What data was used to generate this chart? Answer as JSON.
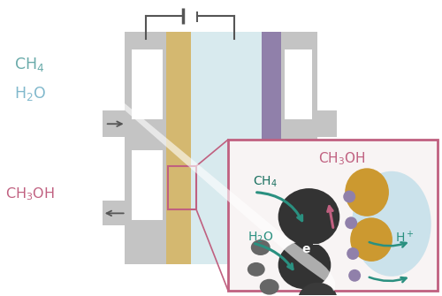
{
  "bg_color": "#ffffff",
  "cell_color": "#c4c4c4",
  "membrane_color": "#d8eaee",
  "anode_color": "#d4b870",
  "cathode_color": "#9080aa",
  "ch4_color": "#6aabaa",
  "h2o_color": "#80b8cc",
  "ch3oh_color": "#c06080",
  "arrow_color_teal": "#2a9080",
  "arrow_color_pink": "#c06080",
  "inset_border_color": "#c06080",
  "inset_bg": "#f8f4f4",
  "gold_color": "#cc9930",
  "purple_color": "#9080aa",
  "light_blue_blob": "#bcdce8",
  "dark_cat": "#333333",
  "mid_cat": "#666666",
  "wire_color": "#555555"
}
